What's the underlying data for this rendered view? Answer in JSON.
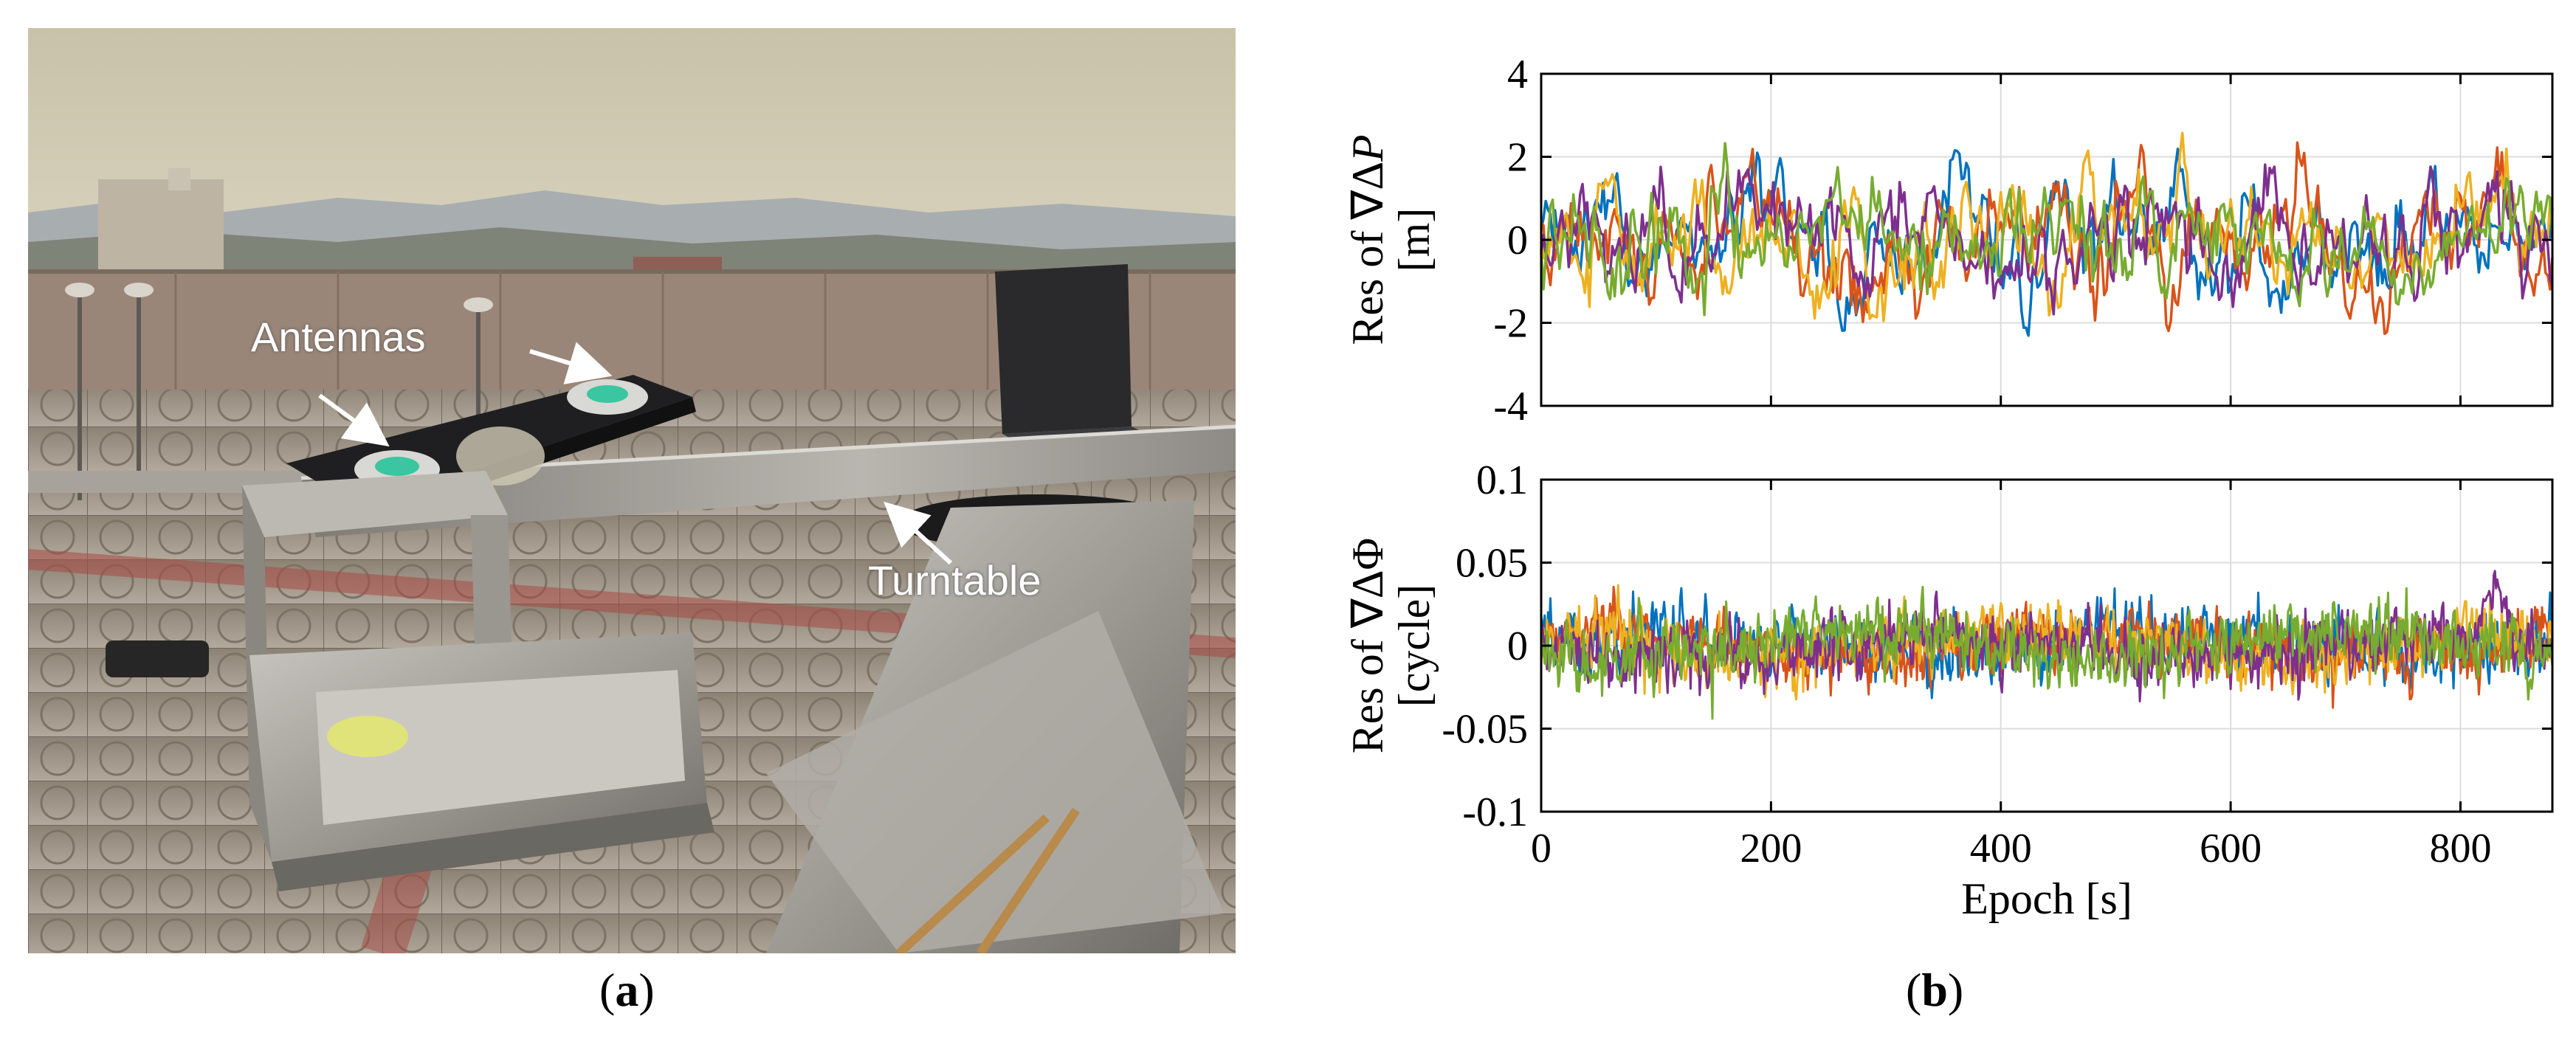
{
  "figure": {
    "panel_a_label": "a",
    "panel_b_label": "b",
    "photo_annotations": {
      "antennas": "Antennas",
      "turntable": "Turntable"
    }
  },
  "colors": {
    "series": [
      "#0072BD",
      "#D95319",
      "#EDB120",
      "#7E2F8E",
      "#77AC30"
    ],
    "grid": "#dcdcdc",
    "axis": "#000000"
  },
  "chart_data": [
    {
      "type": "line",
      "title": "",
      "xlabel": "",
      "ylabel": "Res of ∇ΔP [m]",
      "ylabel_lines": [
        "Res of ∇Δ",
        "[m]"
      ],
      "ylabel_italic_symbol": "P",
      "xlim": [
        0,
        880
      ],
      "ylim": [
        -4,
        4
      ],
      "xticks": [
        0,
        200,
        400,
        600,
        800
      ],
      "yticks": [
        4,
        2,
        0,
        -2,
        -4
      ],
      "ytick_labels": [
        "4",
        "2",
        "0",
        "-2",
        "-4"
      ],
      "grid": true,
      "series_count": 5,
      "approx_sigma": 0.8,
      "approx_peak": 3.3,
      "peak_epoch": 840
    },
    {
      "type": "line",
      "title": "",
      "xlabel": "Epoch [s]",
      "ylabel": "Res of ∇ΔΦ [cycle]",
      "ylabel_lines": [
        "Res of ∇ΔΦ",
        "[cycle]"
      ],
      "xlim": [
        0,
        880
      ],
      "ylim": [
        -0.1,
        0.1
      ],
      "xticks": [
        0,
        200,
        400,
        600,
        800
      ],
      "xtick_labels": [
        "0",
        "200",
        "400",
        "600",
        "800"
      ],
      "yticks": [
        0.1,
        0.05,
        0,
        -0.05,
        -0.1
      ],
      "ytick_labels": [
        "0.1",
        "0.05",
        "0",
        "-0.05",
        "-0.1"
      ],
      "grid": true,
      "series_count": 5,
      "approx_sigma": 0.01,
      "approx_peak": 0.045,
      "peak_epoch": 830
    }
  ]
}
